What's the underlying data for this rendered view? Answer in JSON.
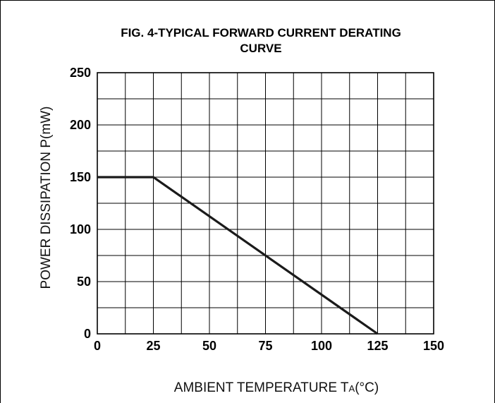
{
  "chart_data": {
    "type": "line",
    "title_line1": "FIG. 4-TYPICAL FORWARD  CURRENT DERATING",
    "title_line2": "CURVE",
    "xlabel_main": "AMBIENT TEMPERATURE T",
    "xlabel_sub": "A",
    "xlabel_unit": "(°C)",
    "ylabel": "POWER DISSIPATION P(mW)",
    "xlim": [
      0,
      150
    ],
    "ylim": [
      0,
      250
    ],
    "x_ticks": [
      "0",
      "25",
      "50",
      "75",
      "100",
      "125",
      "150"
    ],
    "y_ticks": [
      "0",
      "50",
      "100",
      "150",
      "200",
      "250"
    ],
    "grid": true,
    "series": [
      {
        "x": [
          0,
          25,
          125
        ],
        "y": [
          150,
          150,
          0
        ],
        "color": "#1a1a1a"
      }
    ]
  }
}
